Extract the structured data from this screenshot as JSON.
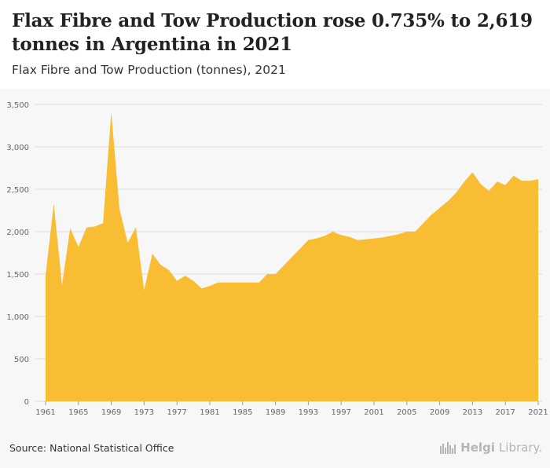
{
  "header": {
    "title": "Flax Fibre and Tow Production rose 0.735% to 2,619 tonnes in Argentina in 2021",
    "subtitle": "Flax Fibre and Tow Production (tonnes), 2021"
  },
  "footer": {
    "source": "Source: National Statistical Office",
    "brand_name": "Helgi",
    "brand_suffix": "Library."
  },
  "colors": {
    "area_fill": "#f9bd33",
    "grid": "#dddddd",
    "axis_text": "#666666",
    "background": "#f7f7f7"
  },
  "chart_data": {
    "type": "area",
    "title": "Flax Fibre and Tow Production (tonnes), 2021",
    "xlabel": "",
    "ylabel": "",
    "ylim": [
      0,
      3500
    ],
    "yticks": [
      0,
      500,
      1000,
      1500,
      2000,
      2500,
      3000,
      3500
    ],
    "ytick_labels": [
      "0",
      "500",
      "1,000",
      "1,500",
      "2,000",
      "2,500",
      "3,000",
      "3,500"
    ],
    "xlim": [
      1961,
      2021
    ],
    "xticks": [
      1961,
      1965,
      1969,
      1973,
      1977,
      1981,
      1985,
      1989,
      1993,
      1997,
      2001,
      2005,
      2009,
      2013,
      2017,
      2021
    ],
    "xtick_labels": [
      "1961",
      "1965",
      "1969",
      "1973",
      "1977",
      "1981",
      "1985",
      "1989",
      "1993",
      "1997",
      "2001",
      "2005",
      "2009",
      "2013",
      "2017",
      "2021"
    ],
    "grid": true,
    "legend": "none",
    "x": [
      1961,
      1962,
      1963,
      1964,
      1965,
      1966,
      1967,
      1968,
      1969,
      1970,
      1971,
      1972,
      1973,
      1974,
      1975,
      1976,
      1977,
      1978,
      1979,
      1980,
      1981,
      1982,
      1983,
      1984,
      1985,
      1986,
      1987,
      1988,
      1989,
      1990,
      1991,
      1992,
      1993,
      1994,
      1995,
      1996,
      1997,
      1998,
      1999,
      2000,
      2001,
      2002,
      2003,
      2004,
      2005,
      2006,
      2007,
      2008,
      2009,
      2010,
      2011,
      2012,
      2013,
      2014,
      2015,
      2016,
      2017,
      2018,
      2019,
      2020,
      2021
    ],
    "series": [
      {
        "values": [
          1480,
          2330,
          1370,
          2040,
          1820,
          2050,
          2060,
          2100,
          3410,
          2270,
          1870,
          2050,
          1310,
          1740,
          1610,
          1550,
          1420,
          1480,
          1420,
          1330,
          1360,
          1400,
          1400,
          1400,
          1400,
          1400,
          1400,
          1500,
          1500,
          1600,
          1700,
          1800,
          1900,
          1920,
          1950,
          2000,
          1960,
          1940,
          1900,
          1910,
          1920,
          1930,
          1950,
          1970,
          2000,
          2000,
          2100,
          2200,
          2280,
          2360,
          2460,
          2590,
          2700,
          2560,
          2480,
          2590,
          2550,
          2660,
          2600,
          2600,
          2619
        ]
      }
    ]
  }
}
